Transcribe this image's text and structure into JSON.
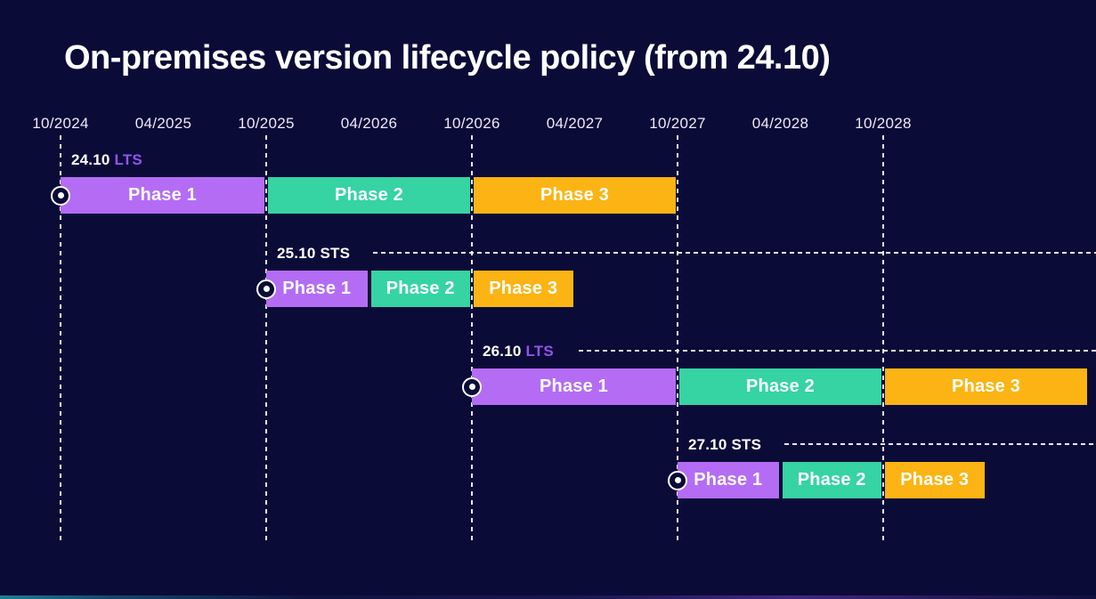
{
  "title": "On-premises version lifecycle policy (from 24.10)",
  "colors": {
    "background": "#0b0b38",
    "phase1": "#b46cf4",
    "phase2": "#36d3a3",
    "phase3": "#fbb414",
    "lts_text": "#9353ee",
    "sts_text": "#ffffff",
    "axis_text": "#eceaf6",
    "dash_lines": "#f4f4fb"
  },
  "chart_data": {
    "type": "gantt-timeline",
    "title": "On-premises version lifecycle policy (from 24.10)",
    "x_axis": {
      "tick_labels": [
        "10/2024",
        "04/2025",
        "10/2025",
        "04/2026",
        "10/2026",
        "04/2027",
        "10/2027",
        "04/2028",
        "10/2028"
      ],
      "gridlines_at": [
        "10/2024",
        "10/2025",
        "10/2026",
        "10/2027",
        "10/2028"
      ],
      "grid": "vertical dashed lines at October ticks only"
    },
    "legend_position": "none",
    "phase_colors": {
      "Phase 1": "#b46cf4",
      "Phase 2": "#36d3a3",
      "Phase 3": "#fbb414"
    },
    "releases": [
      {
        "version": "24.10",
        "channel": "LTS",
        "release_date": "10/2024",
        "continuation_line": false,
        "phases": [
          {
            "label": "Phase 1",
            "from": "10/2024",
            "to": "10/2025"
          },
          {
            "label": "Phase 2",
            "from": "10/2025",
            "to": "10/2026"
          },
          {
            "label": "Phase 3",
            "from": "10/2026",
            "to": "10/2027"
          }
        ]
      },
      {
        "version": "25.10",
        "channel": "STS",
        "release_date": "10/2025",
        "continuation_line": true,
        "phases": [
          {
            "label": "Phase 1",
            "from": "10/2025",
            "to": "04/2026"
          },
          {
            "label": "Phase 2",
            "from": "04/2026",
            "to": "10/2026"
          },
          {
            "label": "Phase 3",
            "from": "10/2026",
            "to": "04/2027"
          }
        ]
      },
      {
        "version": "26.10",
        "channel": "LTS",
        "release_date": "10/2026",
        "continuation_line": true,
        "phases": [
          {
            "label": "Phase 1",
            "from": "10/2026",
            "to": "10/2027"
          },
          {
            "label": "Phase 2",
            "from": "10/2027",
            "to": "10/2028"
          },
          {
            "label": "Phase 3",
            "from": "10/2028",
            "to": "10/2029"
          }
        ]
      },
      {
        "version": "27.10",
        "channel": "STS",
        "release_date": "10/2027",
        "continuation_line": true,
        "phases": [
          {
            "label": "Phase 1",
            "from": "10/2027",
            "to": "04/2028"
          },
          {
            "label": "Phase 2",
            "from": "04/2028",
            "to": "10/2028"
          },
          {
            "label": "Phase 3",
            "from": "10/2028",
            "to": "04/2029"
          }
        ]
      }
    ]
  }
}
